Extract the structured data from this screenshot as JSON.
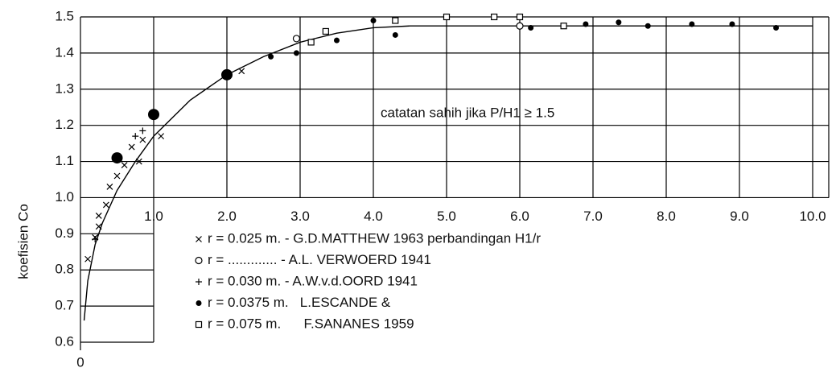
{
  "chart_data": {
    "type": "scatter",
    "y_label": "koefisien Co",
    "annotation": "catatan sahih jika P/H1 ≥ 1.5",
    "xlim": [
      0,
      10
    ],
    "ylim": [
      0.6,
      1.5
    ],
    "xticks": [
      0,
      {
        "value": 1,
        "label": "1.0"
      },
      {
        "value": 2,
        "label": "2.0"
      },
      {
        "value": 3,
        "label": "3.0"
      },
      {
        "value": 4,
        "label": "4.0"
      },
      {
        "value": 5,
        "label": "5.0"
      },
      {
        "value": 6,
        "label": "6.0"
      },
      {
        "value": 7,
        "label": "7.0"
      },
      {
        "value": 8,
        "label": "8.0"
      },
      {
        "value": 9,
        "label": "9.0"
      },
      {
        "value": 10,
        "label": "10.0"
      }
    ],
    "yticks": [
      0.6,
      0.7,
      0.8,
      0.9,
      {
        "value": 1,
        "label": "1.0"
      },
      1.1,
      1.2,
      1.3,
      1.4,
      1.5
    ],
    "grid": true,
    "curve": {
      "color": "#000000",
      "x": [
        0.05,
        0.1,
        0.2,
        0.3,
        0.5,
        0.75,
        1.0,
        1.5,
        2.0,
        2.5,
        3.0,
        3.5,
        4.0,
        4.5,
        10
      ],
      "values": [
        0.66,
        0.77,
        0.87,
        0.93,
        1.02,
        1.1,
        1.17,
        1.27,
        1.34,
        1.39,
        1.43,
        1.455,
        1.47,
        1.475,
        1.475
      ]
    },
    "series": [
      {
        "name": "r = 0.025 m. - G.D.MATTHEW 1963 perbandingan H1/r",
        "marker": "x",
        "color": "#000000",
        "x": [
          0.1,
          0.2,
          0.25,
          0.25,
          0.35,
          0.4,
          0.5,
          0.6,
          0.8,
          0.7,
          0.85,
          1.1,
          2.2
        ],
        "values": [
          0.83,
          0.89,
          0.92,
          0.95,
          0.98,
          1.03,
          1.06,
          1.09,
          1.1,
          1.14,
          1.16,
          1.17,
          1.35
        ]
      },
      {
        "name": "r = ............. - A.L. VERWOERD 1941",
        "marker": "o",
        "color": "#000000",
        "x": [
          2.95,
          6.0
        ],
        "values": [
          1.44,
          1.475
        ]
      },
      {
        "name": "r = 0.030 m. - A.W.v.d.OORD 1941",
        "marker": "+",
        "color": "#000000",
        "x": [
          0.2,
          0.75,
          0.85
        ],
        "values": [
          0.885,
          1.17,
          1.185
        ]
      },
      {
        "name": "r = 0.0375 m.   L.ESCANDE &",
        "marker": "dot",
        "color": "#000000",
        "x": [
          2.6,
          2.95,
          3.5,
          4.0,
          4.3,
          6.15,
          6.9,
          7.35,
          7.75,
          8.35,
          8.9,
          9.5
        ],
        "values": [
          1.39,
          1.4,
          1.435,
          1.49,
          1.45,
          1.47,
          1.48,
          1.485,
          1.475,
          1.48,
          1.48,
          1.47
        ]
      },
      {
        "name": "r = 0.075 m.      F.SANANES 1959",
        "marker": "square",
        "color": "#000000",
        "x": [
          3.15,
          3.35,
          4.3,
          5.0,
          5.65,
          6.0,
          6.6
        ],
        "values": [
          1.43,
          1.46,
          1.49,
          1.5,
          1.5,
          1.5,
          1.475
        ]
      },
      {
        "marker": "big-dot",
        "color": "#000000",
        "x": [
          0.5,
          1.0,
          2.0
        ],
        "values": [
          1.11,
          1.23,
          1.34
        ]
      }
    ]
  }
}
